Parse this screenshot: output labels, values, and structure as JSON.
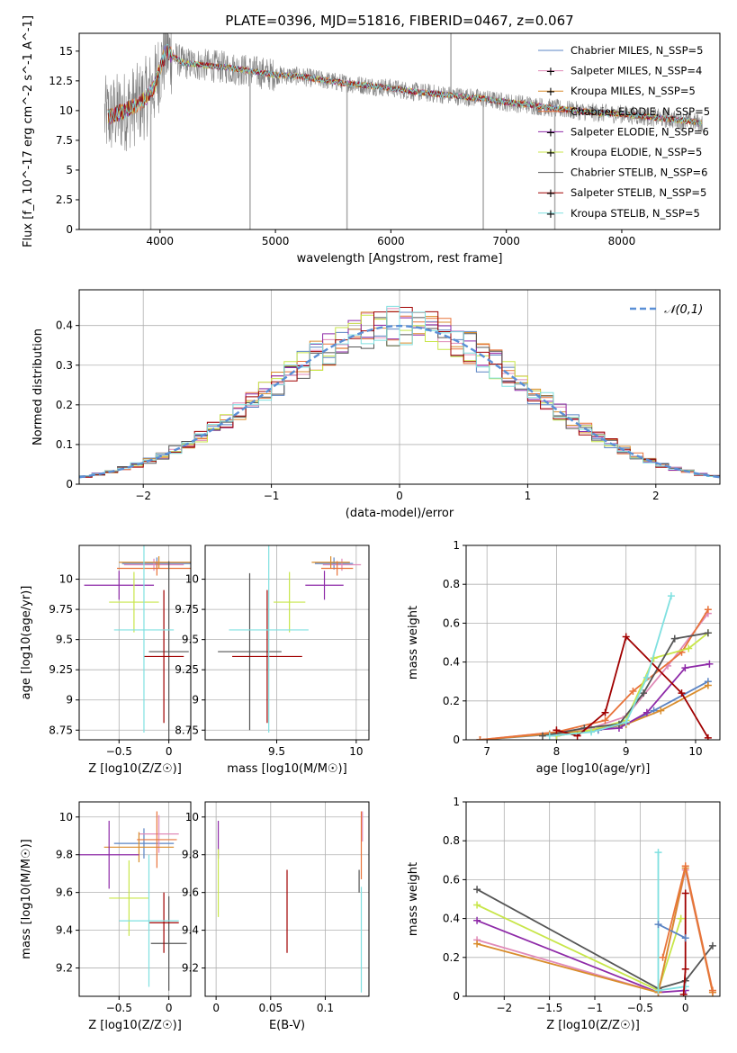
{
  "figure": {
    "title": "PLATE=0396, MJD=51816, FIBERID=0467, z=0.067"
  },
  "colors": {
    "data_gray": "#808080",
    "normal_curve": "#5a8fd6",
    "grid": "#b0b0b0",
    "series": [
      "#5b84c4",
      "#e08ab8",
      "#d98c2b",
      "#e8733a",
      "#8e2aa8",
      "#c8e64a",
      "#555555",
      "#a00000",
      "#7fe0e0"
    ]
  },
  "legend": {
    "series_names": [
      "Chabrier MILES, N_SSP=5",
      "Salpeter MILES, N_SSP=4",
      "Kroupa MILES, N_SSP=5",
      "Chabrier ELODIE, N_SSP=5",
      "Salpeter ELODIE, N_SSP=6",
      "Kroupa ELODIE, N_SSP=5",
      "Chabrier STELIB, N_SSP=6",
      "Salpeter STELIB, N_SSP=5",
      "Kroupa STELIB, N_SSP=5"
    ]
  },
  "chart_data": [
    {
      "id": "spectrum",
      "type": "line",
      "xlabel": "wavelength [Angstrom, rest frame]",
      "ylabel": "Flux [f_λ 10^-17 erg cm^-2 s^-1 A^-1]",
      "xlim": [
        3300,
        8850
      ],
      "ylim": [
        0,
        16.5
      ],
      "xticks": [
        4000,
        5000,
        6000,
        7000,
        8000
      ],
      "yticks": [
        0.0,
        2.5,
        5.0,
        7.5,
        10.0,
        12.5,
        15.0
      ],
      "grid": false,
      "legend_position": "upper-right",
      "model_continuum": {
        "x": [
          3550,
          3700,
          3850,
          3950,
          4050,
          4200,
          4400,
          4600,
          4800,
          5000,
          5200,
          5400,
          5600,
          5800,
          6000,
          6200,
          6400,
          6600,
          6800,
          7000,
          7200,
          7400,
          7600,
          7800,
          8000,
          8200,
          8400,
          8600,
          8700
        ],
        "y": [
          9.5,
          10.0,
          10.8,
          12.0,
          15.0,
          14.0,
          13.8,
          13.6,
          13.3,
          13.0,
          12.9,
          12.6,
          12.3,
          12.1,
          11.9,
          11.6,
          11.4,
          11.2,
          11.0,
          10.7,
          10.5,
          10.2,
          10.0,
          9.8,
          9.7,
          9.5,
          9.3,
          9.1,
          8.9
        ]
      },
      "data_spikes": [
        {
          "x": 3920,
          "y": 0.0
        },
        {
          "x": 4780,
          "y": 0.0
        },
        {
          "x": 5620,
          "y": 0.0
        },
        {
          "x": 6520,
          "y": 16.5
        },
        {
          "x": 6800,
          "y": 0.0
        },
        {
          "x": 7420,
          "y": 0.0
        }
      ]
    },
    {
      "id": "residuals",
      "type": "line",
      "xlabel": "(data-model)/error",
      "ylabel": "Normed distribution",
      "xlim": [
        -2.5,
        2.5
      ],
      "ylim": [
        0,
        0.49
      ],
      "xticks": [
        -2,
        -1,
        0,
        1,
        2
      ],
      "yticks": [
        0.0,
        0.1,
        0.2,
        0.3,
        0.4
      ],
      "grid": true,
      "legend_position": "upper-right",
      "legend_label": "𝒩(0,1)",
      "bin_width": 0.1
    },
    {
      "id": "age_vs_Z",
      "type": "scatter",
      "xlabel": "Z [log10(Z/Z☉)]",
      "ylabel": "age  [log10(age/yr)]",
      "xlim": [
        -0.9,
        0.22
      ],
      "ylim": [
        8.67,
        10.28
      ],
      "xticks": [
        -0.5,
        0.0
      ],
      "yticks": [
        8.75,
        9.0,
        9.25,
        9.5,
        9.75,
        10.0
      ],
      "grid": true,
      "points": [
        {
          "series": 0,
          "x": -0.12,
          "y": 10.13,
          "xerr": 0.35,
          "yerr": 0.05
        },
        {
          "series": 1,
          "x": -0.15,
          "y": 10.12,
          "xerr": 0.3,
          "yerr": 0.05
        },
        {
          "series": 2,
          "x": -0.1,
          "y": 10.14,
          "xerr": 0.4,
          "yerr": 0.05
        },
        {
          "series": 3,
          "x": -0.12,
          "y": 10.09,
          "xerr": 0.4,
          "yerr": 0.06
        },
        {
          "series": 4,
          "x": -0.5,
          "y": 9.95,
          "xerr": 0.35,
          "yerr": 0.12
        },
        {
          "series": 5,
          "x": -0.35,
          "y": 9.81,
          "xerr": 0.25,
          "yerr": 0.25
        },
        {
          "series": 6,
          "x": 0.0,
          "y": 9.4,
          "xerr": 0.2,
          "yerr": 0.75
        },
        {
          "series": 7,
          "x": -0.05,
          "y": 9.36,
          "xerr": 0.2,
          "yerr": 0.55
        },
        {
          "series": 8,
          "x": -0.25,
          "y": 9.58,
          "xerr": 0.3,
          "yerr": 0.85
        }
      ]
    },
    {
      "id": "age_vs_mass",
      "type": "scatter",
      "xlabel": "mass [log10(M/M☉)]",
      "ylabel": "",
      "xlim": [
        9.05,
        10.08
      ],
      "ylim": [
        8.67,
        10.28
      ],
      "xticks": [
        9.5,
        10.0
      ],
      "yticks": [
        8.75,
        9.0,
        9.25,
        9.5,
        9.75,
        10.0
      ],
      "grid": true,
      "points": [
        {
          "series": 0,
          "x": 9.86,
          "y": 10.13,
          "xerr": 0.12,
          "yerr": 0.05
        },
        {
          "series": 1,
          "x": 9.91,
          "y": 10.12,
          "xerr": 0.12,
          "yerr": 0.05
        },
        {
          "series": 2,
          "x": 9.84,
          "y": 10.14,
          "xerr": 0.12,
          "yerr": 0.05
        },
        {
          "series": 3,
          "x": 9.88,
          "y": 10.09,
          "xerr": 0.1,
          "yerr": 0.06
        },
        {
          "series": 4,
          "x": 9.8,
          "y": 9.95,
          "xerr": 0.12,
          "yerr": 0.12
        },
        {
          "series": 5,
          "x": 9.58,
          "y": 9.81,
          "xerr": 0.1,
          "yerr": 0.25
        },
        {
          "series": 6,
          "x": 9.33,
          "y": 9.4,
          "xerr": 0.2,
          "yerr": 0.65
        },
        {
          "series": 7,
          "x": 9.44,
          "y": 9.36,
          "xerr": 0.22,
          "yerr": 0.55
        },
        {
          "series": 8,
          "x": 9.45,
          "y": 9.58,
          "xerr": 0.25,
          "yerr": 0.85
        }
      ]
    },
    {
      "id": "weight_vs_age",
      "type": "line",
      "xlabel": "age  [log10(age/yr)]",
      "ylabel": "mass weight",
      "xlim": [
        6.7,
        10.35
      ],
      "ylim": [
        0,
        1.0
      ],
      "xticks": [
        7,
        8,
        9,
        10
      ],
      "yticks": [
        0.0,
        0.2,
        0.4,
        0.6,
        0.8,
        1.0
      ],
      "grid": true,
      "series": [
        {
          "series": 0,
          "x": [
            6.9,
            8.0,
            8.6,
            9.0,
            9.4,
            10.18
          ],
          "y": [
            0.0,
            0.03,
            0.05,
            0.08,
            0.15,
            0.3
          ]
        },
        {
          "series": 1,
          "x": [
            6.9,
            8.0,
            8.5,
            9.0,
            9.6,
            10.18
          ],
          "y": [
            0.0,
            0.04,
            0.06,
            0.12,
            0.38,
            0.65
          ]
        },
        {
          "series": 2,
          "x": [
            6.9,
            7.9,
            8.5,
            9.0,
            9.5,
            10.18
          ],
          "y": [
            0.0,
            0.03,
            0.05,
            0.08,
            0.15,
            0.28
          ]
        },
        {
          "series": 3,
          "x": [
            6.9,
            8.0,
            8.7,
            9.1,
            9.8,
            10.18
          ],
          "y": [
            0.0,
            0.04,
            0.1,
            0.25,
            0.45,
            0.67
          ]
        },
        {
          "series": 4,
          "x": [
            8.0,
            8.5,
            8.9,
            9.3,
            9.85,
            10.2
          ],
          "y": [
            0.02,
            0.05,
            0.06,
            0.14,
            0.37,
            0.39
          ]
        },
        {
          "series": 5,
          "x": [
            8.0,
            8.5,
            9.0,
            9.4,
            9.9,
            10.18
          ],
          "y": [
            0.02,
            0.05,
            0.1,
            0.42,
            0.47,
            0.55
          ]
        },
        {
          "series": 6,
          "x": [
            7.8,
            8.4,
            8.9,
            9.25,
            9.7,
            10.18
          ],
          "y": [
            0.02,
            0.06,
            0.08,
            0.24,
            0.52,
            0.55
          ]
        },
        {
          "series": 7,
          "x": [
            8.0,
            8.3,
            8.7,
            9.0,
            9.8,
            10.18
          ],
          "y": [
            0.05,
            0.02,
            0.14,
            0.53,
            0.24,
            0.01
          ]
        },
        {
          "series": 8,
          "x": [
            7.9,
            8.5,
            9.0,
            9.3,
            9.65
          ],
          "y": [
            0.02,
            0.04,
            0.09,
            0.32,
            0.74
          ]
        }
      ]
    },
    {
      "id": "mass_vs_Z",
      "type": "scatter",
      "xlabel": "Z [log10(Z/Z☉)]",
      "ylabel": "mass [log10(M/M☉)]",
      "xlim": [
        -0.9,
        0.22
      ],
      "ylim": [
        9.05,
        10.08
      ],
      "xticks": [
        -0.5,
        0.0
      ],
      "yticks": [
        9.2,
        9.4,
        9.6,
        9.8,
        10.0
      ],
      "grid": true,
      "points": [
        {
          "series": 0,
          "x": -0.25,
          "y": 9.86,
          "xerr": 0.3,
          "yerr": 0.08
        },
        {
          "series": 1,
          "x": -0.1,
          "y": 9.91,
          "xerr": 0.2,
          "yerr": 0.1
        },
        {
          "series": 2,
          "x": -0.3,
          "y": 9.84,
          "xerr": 0.35,
          "yerr": 0.08
        },
        {
          "series": 3,
          "x": -0.12,
          "y": 9.88,
          "xerr": 0.2,
          "yerr": 0.15
        },
        {
          "series": 4,
          "x": -0.6,
          "y": 9.8,
          "xerr": 0.3,
          "yerr": 0.18
        },
        {
          "series": 5,
          "x": -0.4,
          "y": 9.57,
          "xerr": 0.2,
          "yerr": 0.2
        },
        {
          "series": 6,
          "x": 0.0,
          "y": 9.33,
          "xerr": 0.18,
          "yerr": 0.25
        },
        {
          "series": 7,
          "x": -0.05,
          "y": 9.44,
          "xerr": 0.15,
          "yerr": 0.16
        },
        {
          "series": 8,
          "x": -0.2,
          "y": 9.45,
          "xerr": 0.3,
          "yerr": 0.35
        }
      ]
    },
    {
      "id": "mass_vs_ebv",
      "type": "scatter",
      "xlabel": "E(B-V)",
      "ylabel": "",
      "xlim": [
        -0.01,
        0.14
      ],
      "ylim": [
        9.05,
        10.08
      ],
      "xticks": [
        0.0,
        0.05,
        0.1
      ],
      "yticks": [
        9.2,
        9.4,
        9.6,
        9.8,
        10.0
      ],
      "grid": true,
      "points": [
        {
          "series": 4,
          "x": 0.002,
          "y": 9.88,
          "xerr": 0.0,
          "yerr": 0.1
        },
        {
          "series": 5,
          "x": 0.002,
          "y": 9.65,
          "xerr": 0.0,
          "yerr": 0.18
        },
        {
          "series": 7,
          "x": 0.065,
          "y": 9.5,
          "xerr": 0.0,
          "yerr": 0.22
        },
        {
          "series": 3,
          "x": 0.133,
          "y": 9.85,
          "xerr": 0.0,
          "yerr": 0.18
        },
        {
          "series": 1,
          "x": 0.134,
          "y": 9.95,
          "xerr": 0.0,
          "yerr": 0.08
        },
        {
          "series": 6,
          "x": 0.131,
          "y": 9.66,
          "xerr": 0.0,
          "yerr": 0.06
        },
        {
          "series": 8,
          "x": 0.133,
          "y": 9.35,
          "xerr": 0.0,
          "yerr": 0.28
        }
      ]
    },
    {
      "id": "weight_vs_Z",
      "type": "line",
      "xlabel": "Z [log10(Z/Z☉)]",
      "ylabel": "mass weight",
      "xlim": [
        -2.42,
        0.38
      ],
      "ylim": [
        0,
        1.0
      ],
      "xticks": [
        -2.0,
        -1.5,
        -1.0,
        -0.5,
        0.0
      ],
      "yticks": [
        0.0,
        0.2,
        0.4,
        0.6,
        0.8,
        1.0
      ],
      "grid": true,
      "series": [
        {
          "series": 6,
          "x": [
            -2.3,
            -0.3,
            0.0,
            0.3
          ],
          "y": [
            0.55,
            0.04,
            0.08,
            0.26
          ]
        },
        {
          "series": 5,
          "x": [
            -2.3,
            -0.3,
            -0.05
          ],
          "y": [
            0.47,
            0.03,
            0.4
          ]
        },
        {
          "series": 4,
          "x": [
            -2.3,
            -0.3,
            0.0
          ],
          "y": [
            0.39,
            0.02,
            0.03
          ]
        },
        {
          "series": 1,
          "x": [
            -2.3,
            -0.3,
            0.0,
            0.3
          ],
          "y": [
            0.29,
            0.02,
            0.65,
            0.02
          ]
        },
        {
          "series": 2,
          "x": [
            -2.3,
            -0.3,
            0.0,
            0.3
          ],
          "y": [
            0.27,
            0.02,
            0.66,
            0.02
          ]
        },
        {
          "series": 8,
          "x": [
            -0.3,
            -0.3,
            0.0
          ],
          "y": [
            0.74,
            0.03,
            0.05
          ]
        },
        {
          "series": 7,
          "x": [
            0.0,
            0.0,
            -0.02
          ],
          "y": [
            0.53,
            0.14,
            0.01
          ]
        },
        {
          "series": 0,
          "x": [
            -0.3,
            0.0
          ],
          "y": [
            0.37,
            0.3
          ]
        },
        {
          "series": 3,
          "x": [
            -0.25,
            0.0,
            0.3
          ],
          "y": [
            0.2,
            0.67,
            0.03
          ]
        }
      ]
    }
  ]
}
